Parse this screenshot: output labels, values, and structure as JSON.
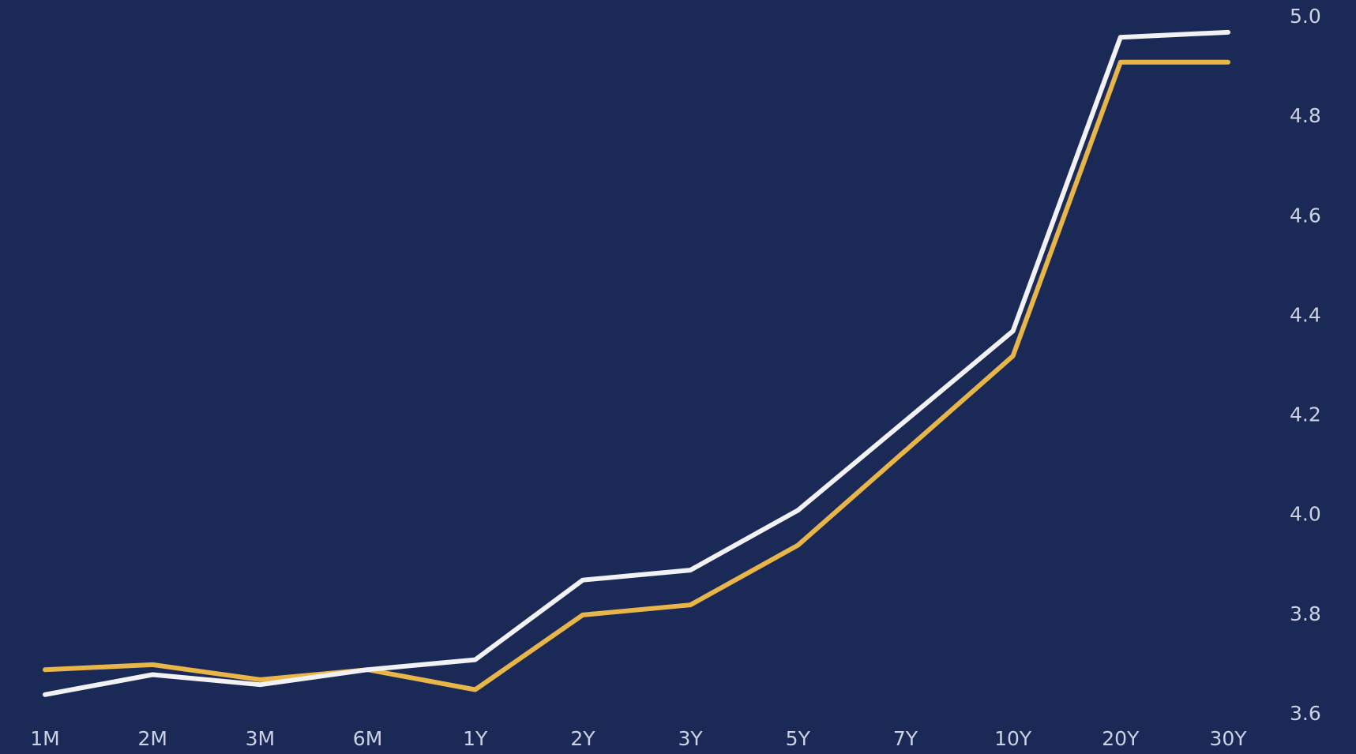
{
  "chart_data": {
    "type": "line",
    "categories": [
      "1M",
      "2M",
      "3M",
      "6M",
      "1Y",
      "2Y",
      "3Y",
      "5Y",
      "7Y",
      "10Y",
      "20Y",
      "30Y"
    ],
    "series": [
      {
        "color": "#e8b548",
        "values": [
          3.69,
          3.7,
          3.67,
          3.69,
          3.65,
          3.8,
          3.82,
          3.94,
          4.13,
          4.32,
          4.91,
          4.91
        ]
      },
      {
        "color": "#f2f2f4",
        "values": [
          3.64,
          3.68,
          3.66,
          3.69,
          3.71,
          3.87,
          3.89,
          4.01,
          4.19,
          4.37,
          4.96,
          4.97
        ]
      }
    ],
    "ylim": [
      3.6,
      5.0
    ],
    "yticks": [
      3.6,
      3.8,
      {
        "value": 4.0,
        "label": "4.0"
      },
      4.2,
      4.4,
      4.6,
      4.8,
      {
        "value": 5.0,
        "label": "5.0"
      }
    ],
    "background": "#1b2957"
  }
}
